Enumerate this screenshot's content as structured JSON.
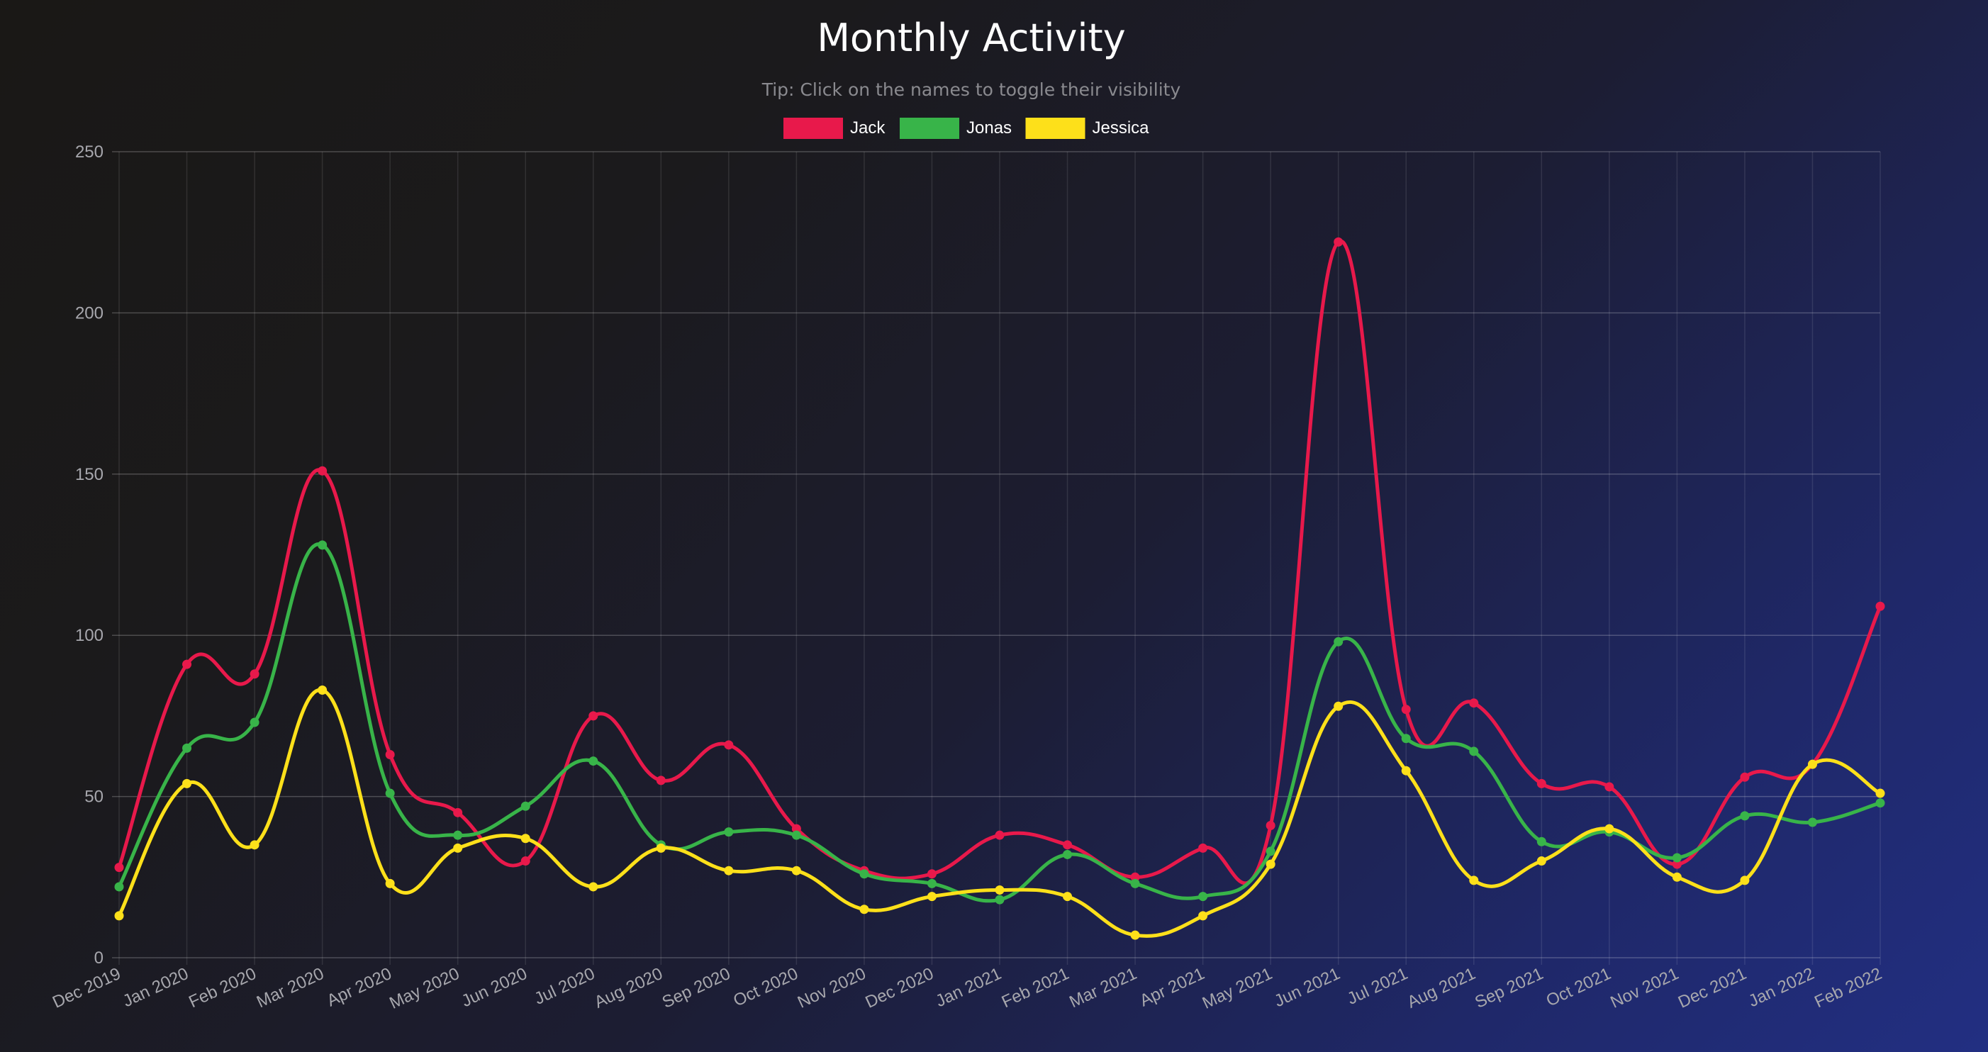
{
  "chart_data": {
    "type": "line",
    "title": "Monthly Activity",
    "subtitle": "Tip: Click on the names to toggle their visibility",
    "categories": [
      "Dec 2019",
      "Jan 2020",
      "Feb 2020",
      "Mar 2020",
      "Apr 2020",
      "May 2020",
      "Jun 2020",
      "Jul 2020",
      "Aug 2020",
      "Sep 2020",
      "Oct 2020",
      "Nov 2020",
      "Dec 2020",
      "Jan 2021",
      "Feb 2021",
      "Mar 2021",
      "Apr 2021",
      "May 2021",
      "Jun 2021",
      "Jul 2021",
      "Aug 2021",
      "Sep 2021",
      "Oct 2021",
      "Nov 2021",
      "Dec 2021",
      "Jan 2022",
      "Feb 2022"
    ],
    "yticks": [
      "0",
      "50",
      "100",
      "150",
      "200",
      "250"
    ],
    "ylim": [
      0,
      250
    ],
    "grid": true,
    "legend_position": "top-center",
    "series": [
      {
        "name": "Jack",
        "color": "#e8194b",
        "values": [
          28,
          91,
          88,
          151,
          63,
          45,
          30,
          75,
          55,
          66,
          40,
          27,
          26,
          38,
          35,
          25,
          34,
          41,
          222,
          77,
          79,
          54,
          53,
          29,
          56,
          60,
          109
        ]
      },
      {
        "name": "Jonas",
        "color": "#38b449",
        "values": [
          22,
          65,
          73,
          128,
          51,
          38,
          47,
          61,
          35,
          39,
          38,
          26,
          23,
          18,
          32,
          23,
          19,
          33,
          98,
          68,
          64,
          36,
          39,
          31,
          44,
          42,
          48
        ]
      },
      {
        "name": "Jessica",
        "color": "#fde01a",
        "values": [
          13,
          54,
          35,
          83,
          23,
          34,
          37,
          22,
          34,
          27,
          27,
          15,
          19,
          21,
          19,
          7,
          13,
          29,
          78,
          58,
          24,
          30,
          40,
          25,
          24,
          60,
          51
        ]
      }
    ]
  }
}
